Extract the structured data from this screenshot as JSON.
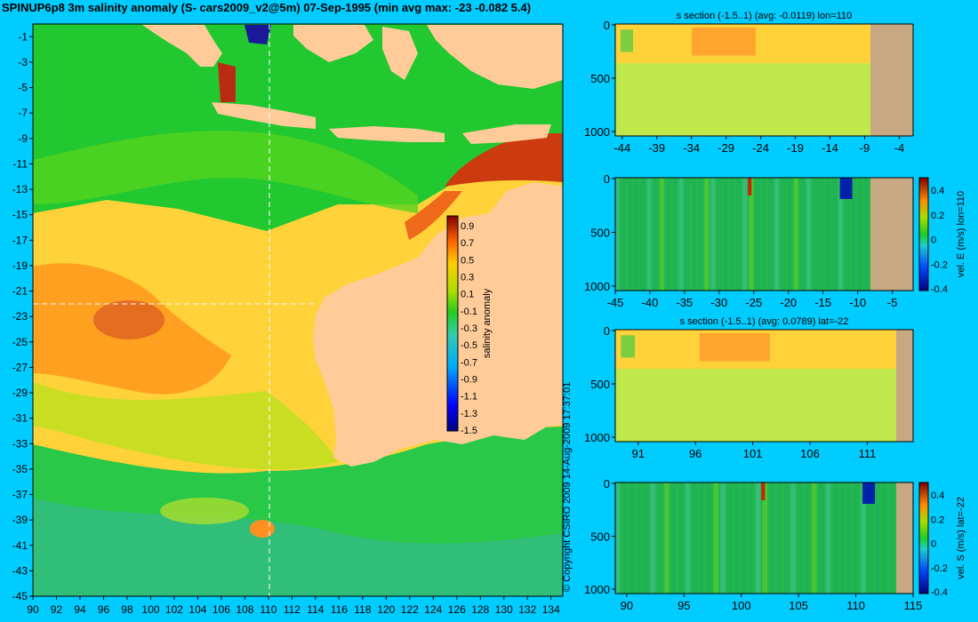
{
  "main": {
    "title": "SPINUP6p8 3m salinity anomaly (S- cars2009_v2@5m) 07-Sep-1995 (min avg max: -23 -0.082 5.4)",
    "x_ticks": [
      "90",
      "92",
      "94",
      "96",
      "98",
      "100",
      "102",
      "104",
      "106",
      "108",
      "110",
      "112",
      "114",
      "116",
      "118",
      "120",
      "122",
      "124",
      "126",
      "128",
      "130",
      "132",
      "134"
    ],
    "y_ticks": [
      "-1",
      "-3",
      "-5",
      "-7",
      "-9",
      "-11",
      "-13",
      "-15",
      "-17",
      "-19",
      "-21",
      "-23",
      "-25",
      "-27",
      "-29",
      "-31",
      "-33",
      "-35",
      "-37",
      "-39",
      "-41",
      "-43",
      "-45"
    ],
    "colorbar_label": "salinity anomaly",
    "colorbar_ticks": [
      "0.9",
      "0.7",
      "0.5",
      "0.3",
      "0.1",
      "-0.1",
      "-0.3",
      "-0.5",
      "-0.7",
      "-0.9",
      "-1.1",
      "-1.3",
      "-1.5"
    ],
    "copyright": "© Copyright CSIRO 2009  14-Aug-2009 17:37:01"
  },
  "sections": [
    {
      "title": "s section (-1.5..1) (avg: -0.0119) lon=110",
      "x_ticks": [
        "-44",
        "-39",
        "-34",
        "-29",
        "-24",
        "-19",
        "-14",
        "-9",
        "-4"
      ],
      "y_ticks": [
        "0",
        "500",
        "1000"
      ],
      "colorbar_label": "",
      "colorbar_ticks": []
    },
    {
      "title": "",
      "x_ticks": [
        "-45",
        "-40",
        "-35",
        "-30",
        "-25",
        "-20",
        "-15",
        "-10",
        "-5"
      ],
      "y_ticks": [
        "0",
        "500",
        "1000"
      ],
      "colorbar_label": "vel. E (m/s) lon=110",
      "colorbar_ticks": [
        "0.4",
        "0.2",
        "0",
        "-0.2",
        "-0.4"
      ]
    },
    {
      "title": "s section (-1.5..1) (avg: 0.0789) lat=-22",
      "x_ticks": [
        "91",
        "96",
        "101",
        "106",
        "111"
      ],
      "y_ticks": [
        "0",
        "500",
        "1000"
      ],
      "colorbar_label": "",
      "colorbar_ticks": []
    },
    {
      "title": "",
      "x_ticks": [
        "90",
        "95",
        "100",
        "105",
        "110",
        "115"
      ],
      "y_ticks": [
        "0",
        "500",
        "1000"
      ],
      "colorbar_label": "vel. S (m/s) lat=-22",
      "colorbar_ticks": [
        "0.4",
        "0.2",
        "0",
        "-0.2",
        "-0.4"
      ]
    }
  ],
  "chart_data": [
    {
      "type": "heatmap",
      "title": "SPINUP6p8 3m salinity anomaly (S- cars2009_v2@5m) 07-Sep-1995 (min avg max: -23 -0.082 5.4)",
      "xlabel": "",
      "ylabel": "",
      "xlim": [
        90,
        135
      ],
      "ylim": [
        -45,
        0
      ],
      "color_range": [
        -1.5,
        1.0
      ],
      "colorbar_label": "salinity anomaly",
      "stats": {
        "min": -23,
        "avg": -0.082,
        "max": 5.4
      },
      "section_lines": {
        "lon": 110,
        "lat": -22
      },
      "colors": {
        "land": "#ffcc99",
        "background": "#00ccff"
      }
    },
    {
      "type": "heatmap",
      "title": "s section (-1.5..1) (avg: -0.0119) lon=110",
      "xlim": [
        -45,
        -2
      ],
      "ylim": [
        1050,
        0
      ],
      "color_range": [
        -1.5,
        1.0
      ],
      "avg": -0.0119
    },
    {
      "type": "heatmap",
      "title": "",
      "xlim": [
        -45,
        -2
      ],
      "ylim": [
        1050,
        0
      ],
      "color_range": [
        -0.4,
        0.4
      ],
      "colorbar_label": "vel. E (m/s) lon=110"
    },
    {
      "type": "heatmap",
      "title": "s section (-1.5..1) (avg: 0.0789) lat=-22",
      "xlim": [
        89,
        115
      ],
      "ylim": [
        1050,
        0
      ],
      "color_range": [
        -1.5,
        1.0
      ],
      "avg": 0.0789
    },
    {
      "type": "heatmap",
      "title": "",
      "xlim": [
        89,
        115
      ],
      "ylim": [
        1050,
        0
      ],
      "color_range": [
        -0.4,
        0.4
      ],
      "colorbar_label": "vel. S (m/s) lat=-22"
    }
  ]
}
